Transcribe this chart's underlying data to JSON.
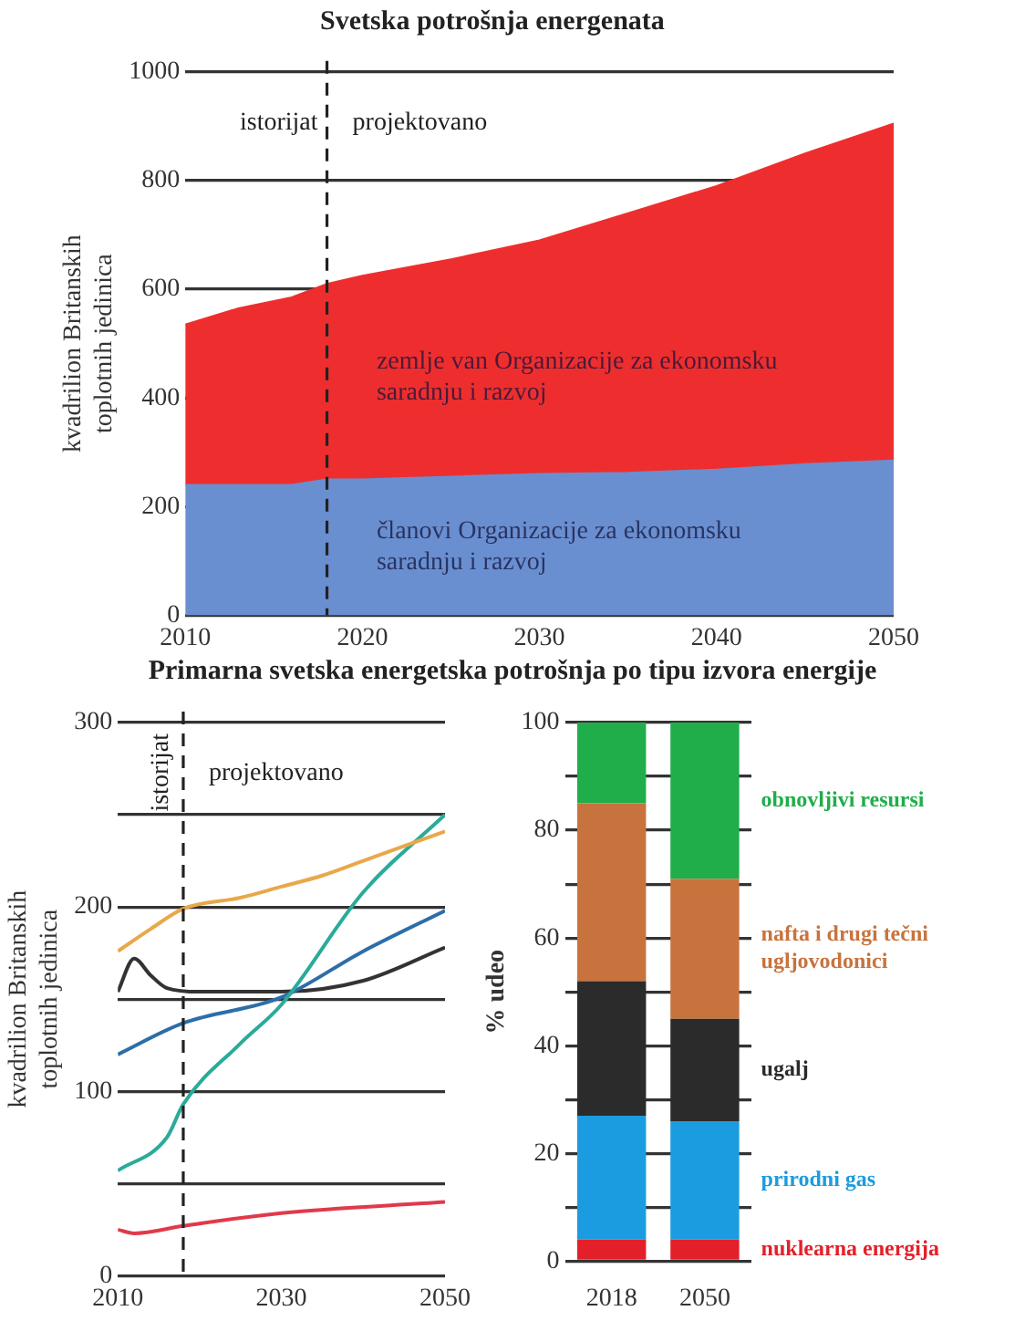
{
  "chart_data": [
    {
      "type": "area",
      "title": "Svetska potrošnja energenata",
      "ylabel": "kvadrilion Britanskih toplotnih jedinica",
      "x": [
        2010,
        2013,
        2016,
        2018,
        2020,
        2025,
        2030,
        2035,
        2040,
        2045,
        2050
      ],
      "stacked": true,
      "series": [
        {
          "name": "članovi Organizacije za ekonomsku saradnju i razvoj",
          "color": "#6a8fd0",
          "values": [
            240,
            240,
            240,
            250,
            250,
            255,
            260,
            262,
            268,
            278,
            285
          ]
        },
        {
          "name": "zemlje van Organizacije za ekonomsku saradnju i razvoj",
          "color": "#ee2e2e",
          "values": [
            295,
            325,
            345,
            360,
            375,
            400,
            430,
            478,
            522,
            572,
            620
          ]
        }
      ],
      "xlim": [
        2010,
        2050
      ],
      "xticks": [
        2010,
        2020,
        2030,
        2040,
        2050
      ],
      "ylim": [
        0,
        1000
      ],
      "yticks": [
        0,
        200,
        400,
        600,
        800,
        1000
      ],
      "grid": "y",
      "ref_lines": [
        {
          "axis": "x",
          "value": 2018,
          "line_style": "dashed"
        }
      ],
      "annotations": [
        "istorijat",
        "projektovano"
      ]
    },
    {
      "type": "line",
      "title": "Primarna svetska energetska potrošnja po tipu izvora energije",
      "ylabel": "kvadrilion Britanskih toplotnih jedinica",
      "marker": "none",
      "series": [
        {
          "color": "#e8a84a",
          "x": [
            2010,
            2014,
            2018,
            2025,
            2030,
            2035,
            2040,
            2045,
            2050
          ],
          "values": [
            176,
            188,
            199,
            205,
            211,
            217,
            225,
            233,
            241
          ]
        },
        {
          "color": "#2aab9a",
          "x": [
            2010,
            2016,
            2018,
            2025,
            2030,
            2040,
            2050
          ],
          "values": [
            57,
            75,
            93,
            126,
            147,
            208,
            250
          ]
        },
        {
          "color": "#2d6ea8",
          "x": [
            2010,
            2018,
            2030,
            2040,
            2050
          ],
          "values": [
            120,
            137,
            151,
            176,
            198
          ]
        },
        {
          "color": "#333333",
          "x": [
            2010,
            2012,
            2014,
            2016,
            2020,
            2030,
            2040,
            2050
          ],
          "values": [
            154,
            172,
            163,
            156,
            154,
            154,
            160,
            178
          ]
        },
        {
          "color": "#e03a4a",
          "x": [
            2010,
            2012,
            2018,
            2030,
            2050
          ],
          "values": [
            25,
            23,
            27,
            34,
            40
          ]
        }
      ],
      "xlim": [
        2010,
        2050
      ],
      "xticks": [
        2010,
        2030,
        2050
      ],
      "ylim": [
        0,
        300
      ],
      "yticks": [
        0,
        {
          "value": 50,
          "label": null
        },
        100,
        {
          "value": 150,
          "label": null
        },
        200,
        {
          "value": 250,
          "label": null
        },
        300
      ],
      "grid": "y",
      "ref_lines": [
        {
          "axis": "x",
          "value": 2018,
          "line_style": "dashed"
        }
      ],
      "annotations": [
        "istorijat",
        "projektovano"
      ]
    },
    {
      "type": "bar",
      "ylabel": "% udeo",
      "categories": [
        "2018",
        "2050"
      ],
      "stacked": true,
      "series": [
        {
          "name": "nuklearna energija",
          "color": "#e3202a",
          "values": [
            4,
            4
          ]
        },
        {
          "name": "prirodni gas",
          "color": "#1c9ce0",
          "values": [
            23,
            22
          ]
        },
        {
          "name": "ugalj",
          "color": "#2b2b2b",
          "values": [
            25,
            19
          ]
        },
        {
          "name": "nafta i drugi tečni ugljovodonici",
          "color": "#c8733d",
          "values": [
            33,
            26
          ]
        },
        {
          "name": "obnovljivi resursi",
          "color": "#1fae4a",
          "values": [
            15,
            29
          ]
        }
      ],
      "ylim": [
        0,
        100
      ],
      "yticks": [
        0,
        {
          "value": 10,
          "label": null
        },
        20,
        {
          "value": 30,
          "label": null
        },
        40,
        {
          "value": 50,
          "label": null
        },
        60,
        {
          "value": 70,
          "label": null
        },
        80,
        {
          "value": 90,
          "label": null
        },
        100
      ],
      "grid": "y"
    }
  ]
}
